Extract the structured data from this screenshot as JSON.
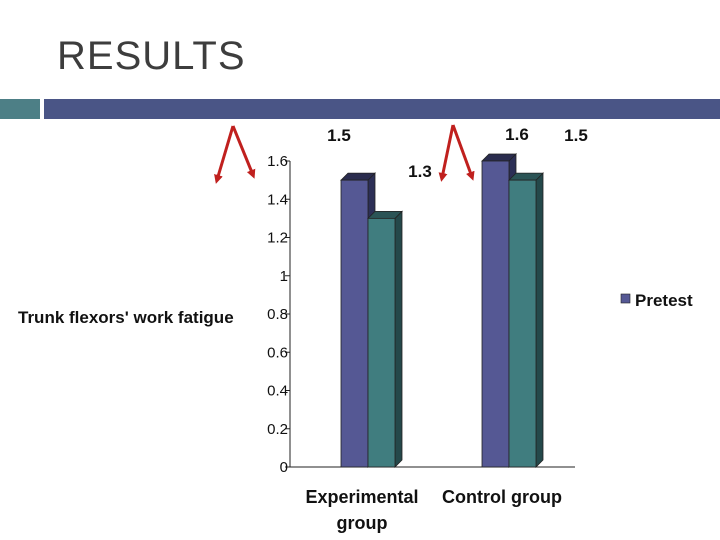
{
  "slide": {
    "title": "RESULTS",
    "colors": {
      "accent_teal": "#4d7f86",
      "accent_navy": "#4a5586",
      "arrow": "#c0201e"
    }
  },
  "chart_data": {
    "type": "bar",
    "title": "",
    "xlabel": "",
    "ylabel": "Trunk flexors' work fatigue",
    "categories": [
      "Experimental group",
      "Control group"
    ],
    "series": [
      {
        "name": "Pretest",
        "values": [
          1.5,
          1.6
        ],
        "color": "#555894"
      },
      {
        "name": "",
        "values": [
          1.3,
          1.5
        ],
        "color": "#407d7f"
      }
    ],
    "ylim": [
      0,
      1.6
    ],
    "yticks": [
      "0",
      "0.2",
      "0.4",
      "0.6",
      "0.8",
      "1",
      "1.2",
      "1.4",
      "1.6"
    ],
    "data_labels": [
      "1.5",
      "1.3",
      "1.6",
      "1.5"
    ],
    "legend": [
      "Pretest"
    ],
    "legend_position": "right",
    "grid": false
  }
}
